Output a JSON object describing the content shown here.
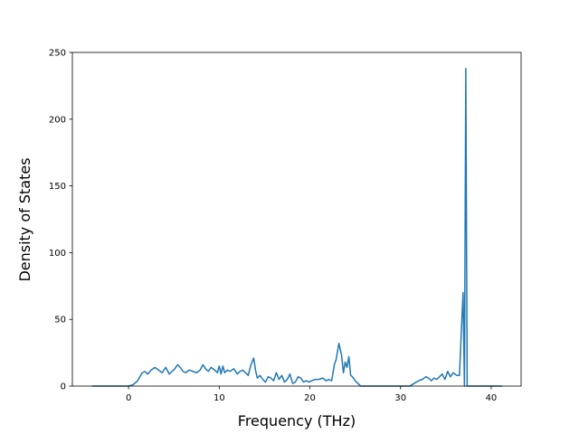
{
  "chart_data": {
    "type": "line",
    "title": "",
    "xlabel": "Frequency (THz)",
    "ylabel": "Density of States",
    "xlim": [
      -6.2,
      43.3
    ],
    "ylim": [
      0,
      250
    ],
    "xticks": [
      0,
      10,
      20,
      30,
      40
    ],
    "yticks": [
      0,
      50,
      100,
      150,
      200,
      250
    ],
    "grid": false,
    "line_color": "#1f77b4",
    "series": [
      {
        "x": [
          -4.0,
          -3.0,
          -2.0,
          -1.0,
          0.0,
          0.5,
          1.0,
          1.5,
          1.8,
          2.1,
          2.5,
          2.9,
          3.3,
          3.7,
          4.1,
          4.5,
          4.8,
          5.1,
          5.4,
          5.7,
          6.0,
          6.3,
          6.7,
          7.1,
          7.5,
          7.9,
          8.2,
          8.5,
          8.8,
          9.1,
          9.5,
          9.8,
          10.0,
          10.2,
          10.4,
          10.6,
          10.9,
          11.2,
          11.6,
          12.0,
          12.3,
          12.6,
          12.9,
          13.2,
          13.5,
          13.8,
          14.0,
          14.2,
          14.5,
          14.8,
          15.1,
          15.4,
          15.7,
          16.0,
          16.3,
          16.6,
          16.9,
          17.2,
          17.5,
          17.8,
          18.1,
          18.4,
          18.7,
          19.0,
          19.3,
          19.6,
          19.9,
          20.2,
          20.6,
          21.0,
          21.4,
          21.8,
          22.1,
          22.4,
          22.7,
          22.9,
          23.2,
          23.5,
          23.7,
          23.9,
          24.1,
          24.3,
          24.5,
          24.7,
          25.0,
          25.3,
          25.6,
          26.0,
          27.0,
          28.0,
          29.0,
          30.0,
          31.0,
          31.5,
          32.0,
          32.4,
          32.8,
          33.1,
          33.4,
          33.7,
          34.0,
          34.3,
          34.6,
          34.9,
          35.2,
          35.5,
          35.8,
          36.0,
          36.2,
          36.5,
          36.8,
          36.9,
          37.05,
          37.2,
          37.35,
          37.5,
          37.65,
          37.8,
          38.0,
          39.0,
          40.0,
          41.2
        ],
        "y": [
          0,
          0,
          0,
          0,
          0,
          1,
          4,
          10,
          11,
          9,
          12,
          14,
          12,
          10,
          14,
          9,
          11,
          13,
          16,
          14,
          11,
          10,
          12,
          11,
          10,
          12,
          16,
          13,
          11,
          14,
          12,
          10,
          15,
          9,
          15,
          10,
          12,
          11,
          13,
          9,
          11,
          12,
          10,
          8,
          16,
          21,
          12,
          6,
          8,
          5,
          3,
          7,
          6,
          4,
          10,
          5,
          8,
          3,
          5,
          9,
          2,
          3,
          7,
          6,
          3,
          4,
          3,
          4,
          5,
          5,
          6,
          4,
          5,
          4,
          16,
          20,
          32,
          23,
          10,
          18,
          14,
          22,
          8,
          7,
          4,
          2,
          0,
          0,
          0,
          0,
          0,
          0,
          0,
          2,
          4,
          5,
          7,
          6,
          4,
          6,
          5,
          7,
          9,
          5,
          11,
          7,
          10,
          9,
          8,
          8,
          55,
          70,
          0,
          238,
          0,
          0,
          0,
          0,
          0,
          0,
          0,
          0
        ]
      }
    ]
  }
}
